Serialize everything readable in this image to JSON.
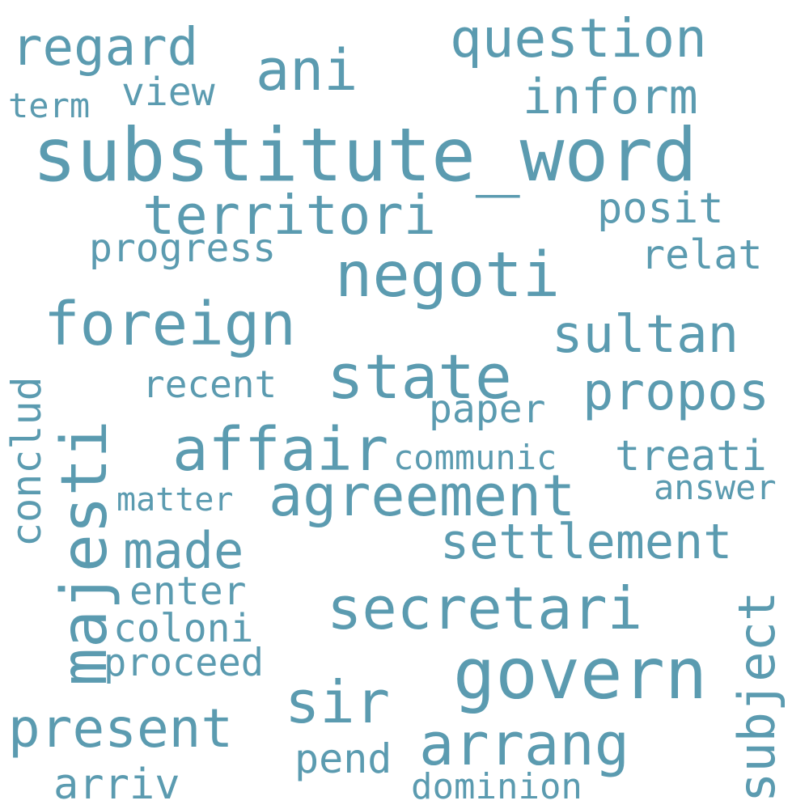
{
  "word_color": "#5b9bb0",
  "words": {
    "substitute_word": "substitute_word",
    "negoti": "negoti",
    "govern": "govern",
    "state": "state",
    "agreement": "agreement",
    "affair": "affair",
    "foreign": "foreign",
    "secretari": "secretari",
    "majesti": "majesti",
    "territori": "territori",
    "question": "question",
    "regard": "regard",
    "ani": "ani",
    "inform": "inform",
    "sultan": "sultan",
    "propos": "propos",
    "settlement": "settlement",
    "made": "made",
    "present": "present",
    "sir": "sir",
    "arrang": "arrang",
    "subject": "subject",
    "treati": "treati",
    "posit": "posit",
    "relat": "relat",
    "progress": "progress",
    "view": "view",
    "term": "term",
    "recent": "recent",
    "paper": "paper",
    "communic": "communic",
    "answer": "answer",
    "matter": "matter",
    "enter": "enter",
    "coloni": "coloni",
    "proceed": "proceed",
    "pend": "pend",
    "dominion": "dominion",
    "arriv": "arriv",
    "conclud": "conclud"
  }
}
